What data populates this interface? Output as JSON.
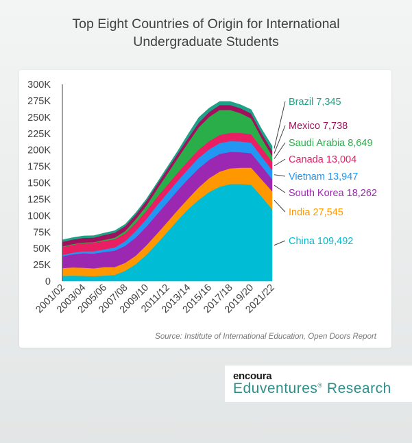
{
  "header": {
    "title_line1": "Top Eight Countries of Origin for International",
    "title_line2": "Undergraduate Students"
  },
  "source_note": "Source: Institute of International Education, Open Doors Report",
  "branding": {
    "wordmark": "encoura",
    "name": "Eduventures",
    "registered": "®",
    "suffix": " Research",
    "name_color": "#2e8f8a"
  },
  "chart_data": {
    "type": "area",
    "stacked": true,
    "grid": false,
    "legend_placement": "right, labels at series ends",
    "x": [
      "2001/02",
      "2002/03",
      "2003/04",
      "2004/05",
      "2005/06",
      "2006/07",
      "2007/08",
      "2008/09",
      "2009/10",
      "2010/11",
      "2011/12",
      "2012/13",
      "2013/14",
      "2014/15",
      "2015/16",
      "2016/17",
      "2017/18",
      "2018/19",
      "2019/20",
      "2020/21",
      "2021/22"
    ],
    "x_tick_labels": [
      "2001/02",
      "2003/04",
      "2005/06",
      "2007/08",
      "2009/10",
      "2011/12",
      "2013/14",
      "2015/16",
      "2017/18",
      "2019/20",
      "2021/22"
    ],
    "ylim": [
      0,
      300000
    ],
    "y_tick_labels": [
      "0",
      "25K",
      "50K",
      "75K",
      "100K",
      "125K",
      "150K",
      "175K",
      "200K",
      "225K",
      "250K",
      "275K",
      "300K"
    ],
    "series": [
      {
        "name": "China",
        "end_label": "China 109,492",
        "color": "#00bcd4",
        "values": [
          8000,
          8500,
          8000,
          7500,
          8500,
          9500,
          16000,
          26000,
          40000,
          57000,
          75000,
          93000,
          110000,
          124000,
          136000,
          144000,
          148000,
          148000,
          147000,
          129000,
          109492
        ]
      },
      {
        "name": "India",
        "end_label": "India 27,545",
        "color": "#ff9800",
        "values": [
          12000,
          12500,
          12500,
          12000,
          13000,
          12000,
          12000,
          13000,
          14500,
          15000,
          15000,
          15500,
          16000,
          19000,
          21000,
          23000,
          24000,
          25000,
          26000,
          26000,
          27545
        ]
      },
      {
        "name": "South Korea",
        "end_label": "South Korea 18,262",
        "color": "#9c27b0",
        "values": [
          18000,
          20000,
          22000,
          22500,
          23000,
          25000,
          26000,
          27500,
          28500,
          29500,
          30000,
          30000,
          30000,
          29000,
          28000,
          27000,
          25000,
          23500,
          22000,
          20500,
          18262
        ]
      },
      {
        "name": "Vietnam",
        "end_label": "Vietnam 13,947",
        "color": "#2196f3",
        "values": [
          2000,
          2500,
          3000,
          3500,
          4000,
          5000,
          7000,
          10000,
          11500,
          13500,
          14000,
          14500,
          15000,
          16000,
          16000,
          16500,
          16500,
          16500,
          16000,
          14500,
          13947
        ]
      },
      {
        "name": "Canada",
        "end_label": "Canada 13,004",
        "color": "#e91e63",
        "values": [
          12000,
          12000,
          12500,
          13000,
          13000,
          12500,
          12000,
          12500,
          12500,
          12500,
          12500,
          12500,
          12500,
          12500,
          12500,
          12500,
          12500,
          13000,
          13000,
          13000,
          13004
        ]
      },
      {
        "name": "Saudi Arabia",
        "end_label": "Saudi Arabia 8,649",
        "color": "#2aae4a",
        "values": [
          1000,
          1000,
          1000,
          1000,
          1500,
          2500,
          3500,
          5500,
          8000,
          12000,
          17000,
          22000,
          28000,
          34000,
          37000,
          38000,
          35000,
          30000,
          24000,
          15000,
          8649
        ]
      },
      {
        "name": "Mexico",
        "end_label": "Mexico 7,738",
        "color": "#a0105c",
        "values": [
          7000,
          7000,
          7000,
          7000,
          7500,
          7500,
          7500,
          7000,
          7000,
          7000,
          7000,
          7000,
          7000,
          7000,
          7500,
          7500,
          7500,
          7500,
          7500,
          7500,
          7738
        ]
      },
      {
        "name": "Brazil",
        "end_label": "Brazil 7,345",
        "color": "#1fa187",
        "values": [
          3000,
          3000,
          3000,
          3000,
          3000,
          3000,
          3000,
          3000,
          3000,
          3000,
          3500,
          4000,
          6000,
          8000,
          6000,
          5500,
          5500,
          5500,
          6000,
          6500,
          7345
        ]
      }
    ]
  }
}
